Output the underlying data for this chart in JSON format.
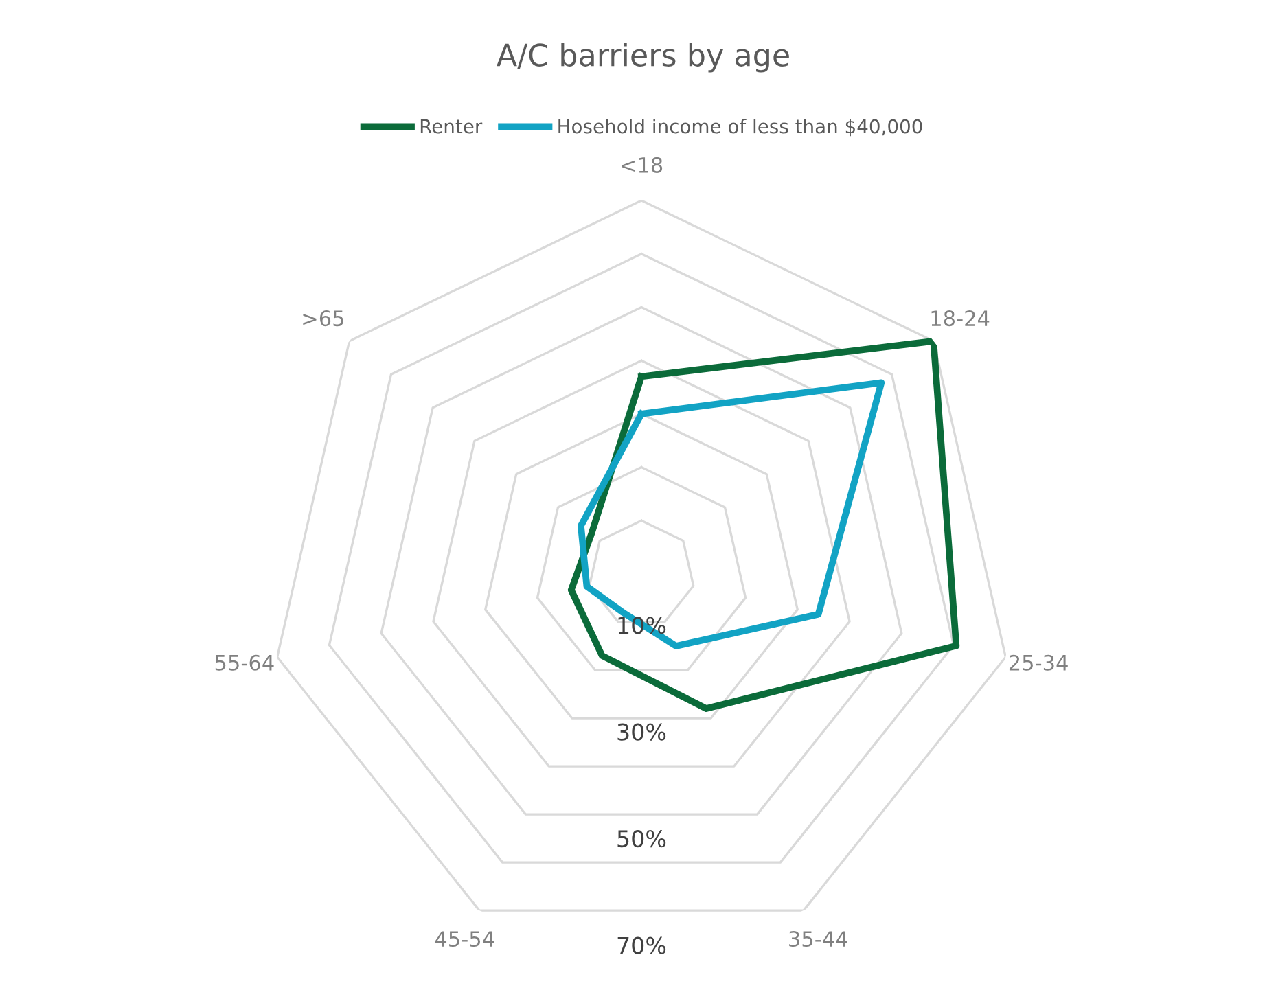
{
  "chart_data": {
    "type": "radar",
    "title": "A/C barriers by age",
    "categories": [
      "<18",
      "18-24",
      "25-34",
      "35-44",
      "45-54",
      "55-64",
      ">65"
    ],
    "series": [
      {
        "name": "Renter",
        "color": "#0b6b3a",
        "values": [
          37,
          70,
          60.5,
          28,
          17,
          13.5,
          12
        ]
      },
      {
        "name": "Hosehold income of less than $40,000",
        "color": "#12a3c4",
        "values": [
          30,
          57.5,
          34,
          15,
          8,
          10.5,
          14.5
        ]
      }
    ],
    "ylim": [
      0,
      70
    ],
    "yticks": [
      {
        "value": 10,
        "label": "10%"
      },
      {
        "value": 30,
        "label": "30%"
      },
      {
        "value": 50,
        "label": "50%"
      },
      {
        "value": 70,
        "label": "70%"
      }
    ],
    "grid": true,
    "legend": "top"
  }
}
